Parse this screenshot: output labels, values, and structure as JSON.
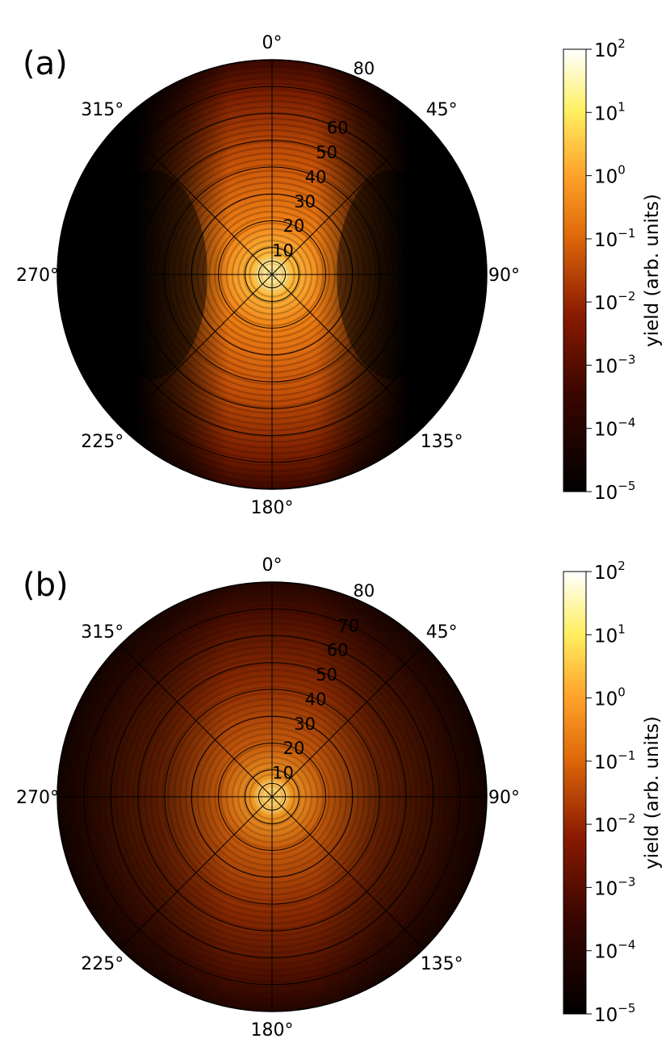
{
  "chart_data": [
    {
      "type": "heatmap",
      "subtype": "polar",
      "panel_label": "(a)",
      "angular_ticks": [
        "0°",
        "45°",
        "90°",
        "135°",
        "180°",
        "225°",
        "270°",
        "315°"
      ],
      "angular_tick_values": [
        0,
        45,
        90,
        135,
        180,
        225,
        270,
        315
      ],
      "radial_ticks": [
        "10",
        "20",
        "30",
        "40",
        "50",
        "60",
        "80"
      ],
      "radial_tick_values": [
        10,
        20,
        30,
        40,
        50,
        60,
        80
      ],
      "radial_max": 80,
      "pattern": "lobes along 0° and 180°, dark at 90° and 270°",
      "colorbar": {
        "label": "yield (arb. units)",
        "scale": "log",
        "min_exponent": -5,
        "max_exponent": 2,
        "tick_base": "10",
        "tick_exponents": [
          "2",
          "1",
          "0",
          "−1",
          "−2",
          "−3",
          "−4",
          "−5"
        ],
        "colormap": "afmhot"
      }
    },
    {
      "type": "heatmap",
      "subtype": "polar",
      "panel_label": "(b)",
      "angular_ticks": [
        "0°",
        "45°",
        "90°",
        "135°",
        "180°",
        "225°",
        "270°",
        "315°"
      ],
      "angular_tick_values": [
        0,
        45,
        90,
        135,
        180,
        225,
        270,
        315
      ],
      "radial_ticks": [
        "10",
        "20",
        "30",
        "40",
        "50",
        "60",
        "70",
        "80"
      ],
      "radial_tick_values": [
        10,
        20,
        30,
        40,
        50,
        60,
        70,
        80
      ],
      "radial_max": 80,
      "pattern": "nearly isotropic concentric rings, weaker yield",
      "colorbar": {
        "label": "yield (arb. units)",
        "scale": "log",
        "min_exponent": -5,
        "max_exponent": 2,
        "tick_base": "10",
        "tick_exponents": [
          "2",
          "1",
          "0",
          "−1",
          "−2",
          "−3",
          "−4",
          "−5"
        ],
        "colormap": "afmhot"
      }
    }
  ],
  "colors": {
    "background": "#ffffff",
    "black": "#000000",
    "dark_red": "#3a0600",
    "red": "#8a1a00",
    "orange": "#e06a0a",
    "bright_orange": "#ff9a20",
    "yellow": "#ffef60",
    "white": "#ffffff"
  }
}
